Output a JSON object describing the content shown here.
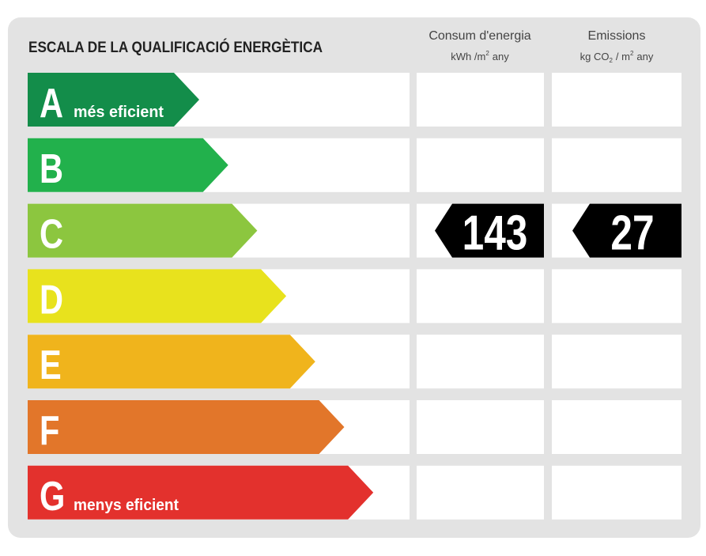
{
  "title": "ESCALA DE LA QUALIFICACIÓ ENERGÈTICA",
  "columns": [
    {
      "title": "Consum d'energia",
      "unit": [
        "kWh /m",
        "2",
        "any"
      ]
    },
    {
      "title": "Emissions",
      "unit": [
        "kg CO",
        "2",
        "/ m",
        "2",
        "any"
      ]
    }
  ],
  "rows": [
    {
      "letter": "A",
      "label": "més eficient",
      "color": "#138d4a"
    },
    {
      "letter": "B",
      "color": "#22b14c"
    },
    {
      "letter": "C",
      "color": "#8cc63f",
      "consumption": 143,
      "emissions": 27
    },
    {
      "letter": "D",
      "color": "#e8e21d"
    },
    {
      "letter": "E",
      "color": "#f0b41c"
    },
    {
      "letter": "F",
      "color": "#e2762a"
    },
    {
      "letter": "G",
      "label": "menys eficient",
      "color": "#e3312d"
    }
  ]
}
